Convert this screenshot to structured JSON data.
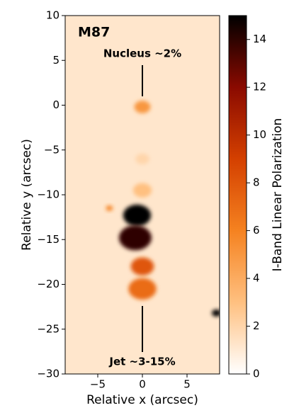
{
  "chart_data": {
    "type": "image",
    "title": "M87",
    "annotations": [
      "Nucleus ~2%",
      "Jet ~3-15%"
    ],
    "xlabel": "Relative x (arcsec)",
    "ylabel": "Relative y (arcsec)",
    "xlim": [
      -8.65,
      8.65
    ],
    "ylim": [
      -30,
      10
    ],
    "xticks": [
      {
        "value": -5,
        "label": "−5"
      },
      0,
      5
    ],
    "yticks": [
      {
        "value": -30,
        "label": "−30"
      },
      {
        "value": -25,
        "label": "−25"
      },
      {
        "value": -20,
        "label": "−20"
      },
      {
        "value": -15,
        "label": "−15"
      },
      {
        "value": -10,
        "label": "−10"
      },
      {
        "value": -5,
        "label": "−5"
      },
      0,
      5,
      10
    ],
    "background_value": 1.2,
    "blobs": [
      {
        "x": 0,
        "y": -0.2,
        "value": 5,
        "size": 0.7
      },
      {
        "x": 0,
        "y": -9.5,
        "value": 3,
        "size": 0.8
      },
      {
        "x": 0,
        "y": -6,
        "value": 2,
        "size": 0.6
      },
      {
        "x": -0.6,
        "y": -12.3,
        "value": 15,
        "size": 1.2
      },
      {
        "x": -0.8,
        "y": -14.8,
        "value": 14,
        "size": 1.4
      },
      {
        "x": 0,
        "y": -18,
        "value": 8,
        "size": 1.0
      },
      {
        "x": 0,
        "y": -20.5,
        "value": 7,
        "size": 1.2
      },
      {
        "x": -3.7,
        "y": -11.5,
        "value": 6,
        "size": 0.3
      },
      {
        "x": 8.3,
        "y": -23.2,
        "value": 15,
        "size": 0.4
      }
    ],
    "colorbar": {
      "label": "I-Band Linear Polarization",
      "lim": [
        0,
        15
      ],
      "ticks": [
        0,
        2,
        4,
        6,
        8,
        10,
        12,
        14
      ],
      "colormap": [
        "#ffffff",
        "#ffc080",
        "#f58220",
        "#d44000",
        "#8a0a00",
        "#000000"
      ]
    }
  }
}
